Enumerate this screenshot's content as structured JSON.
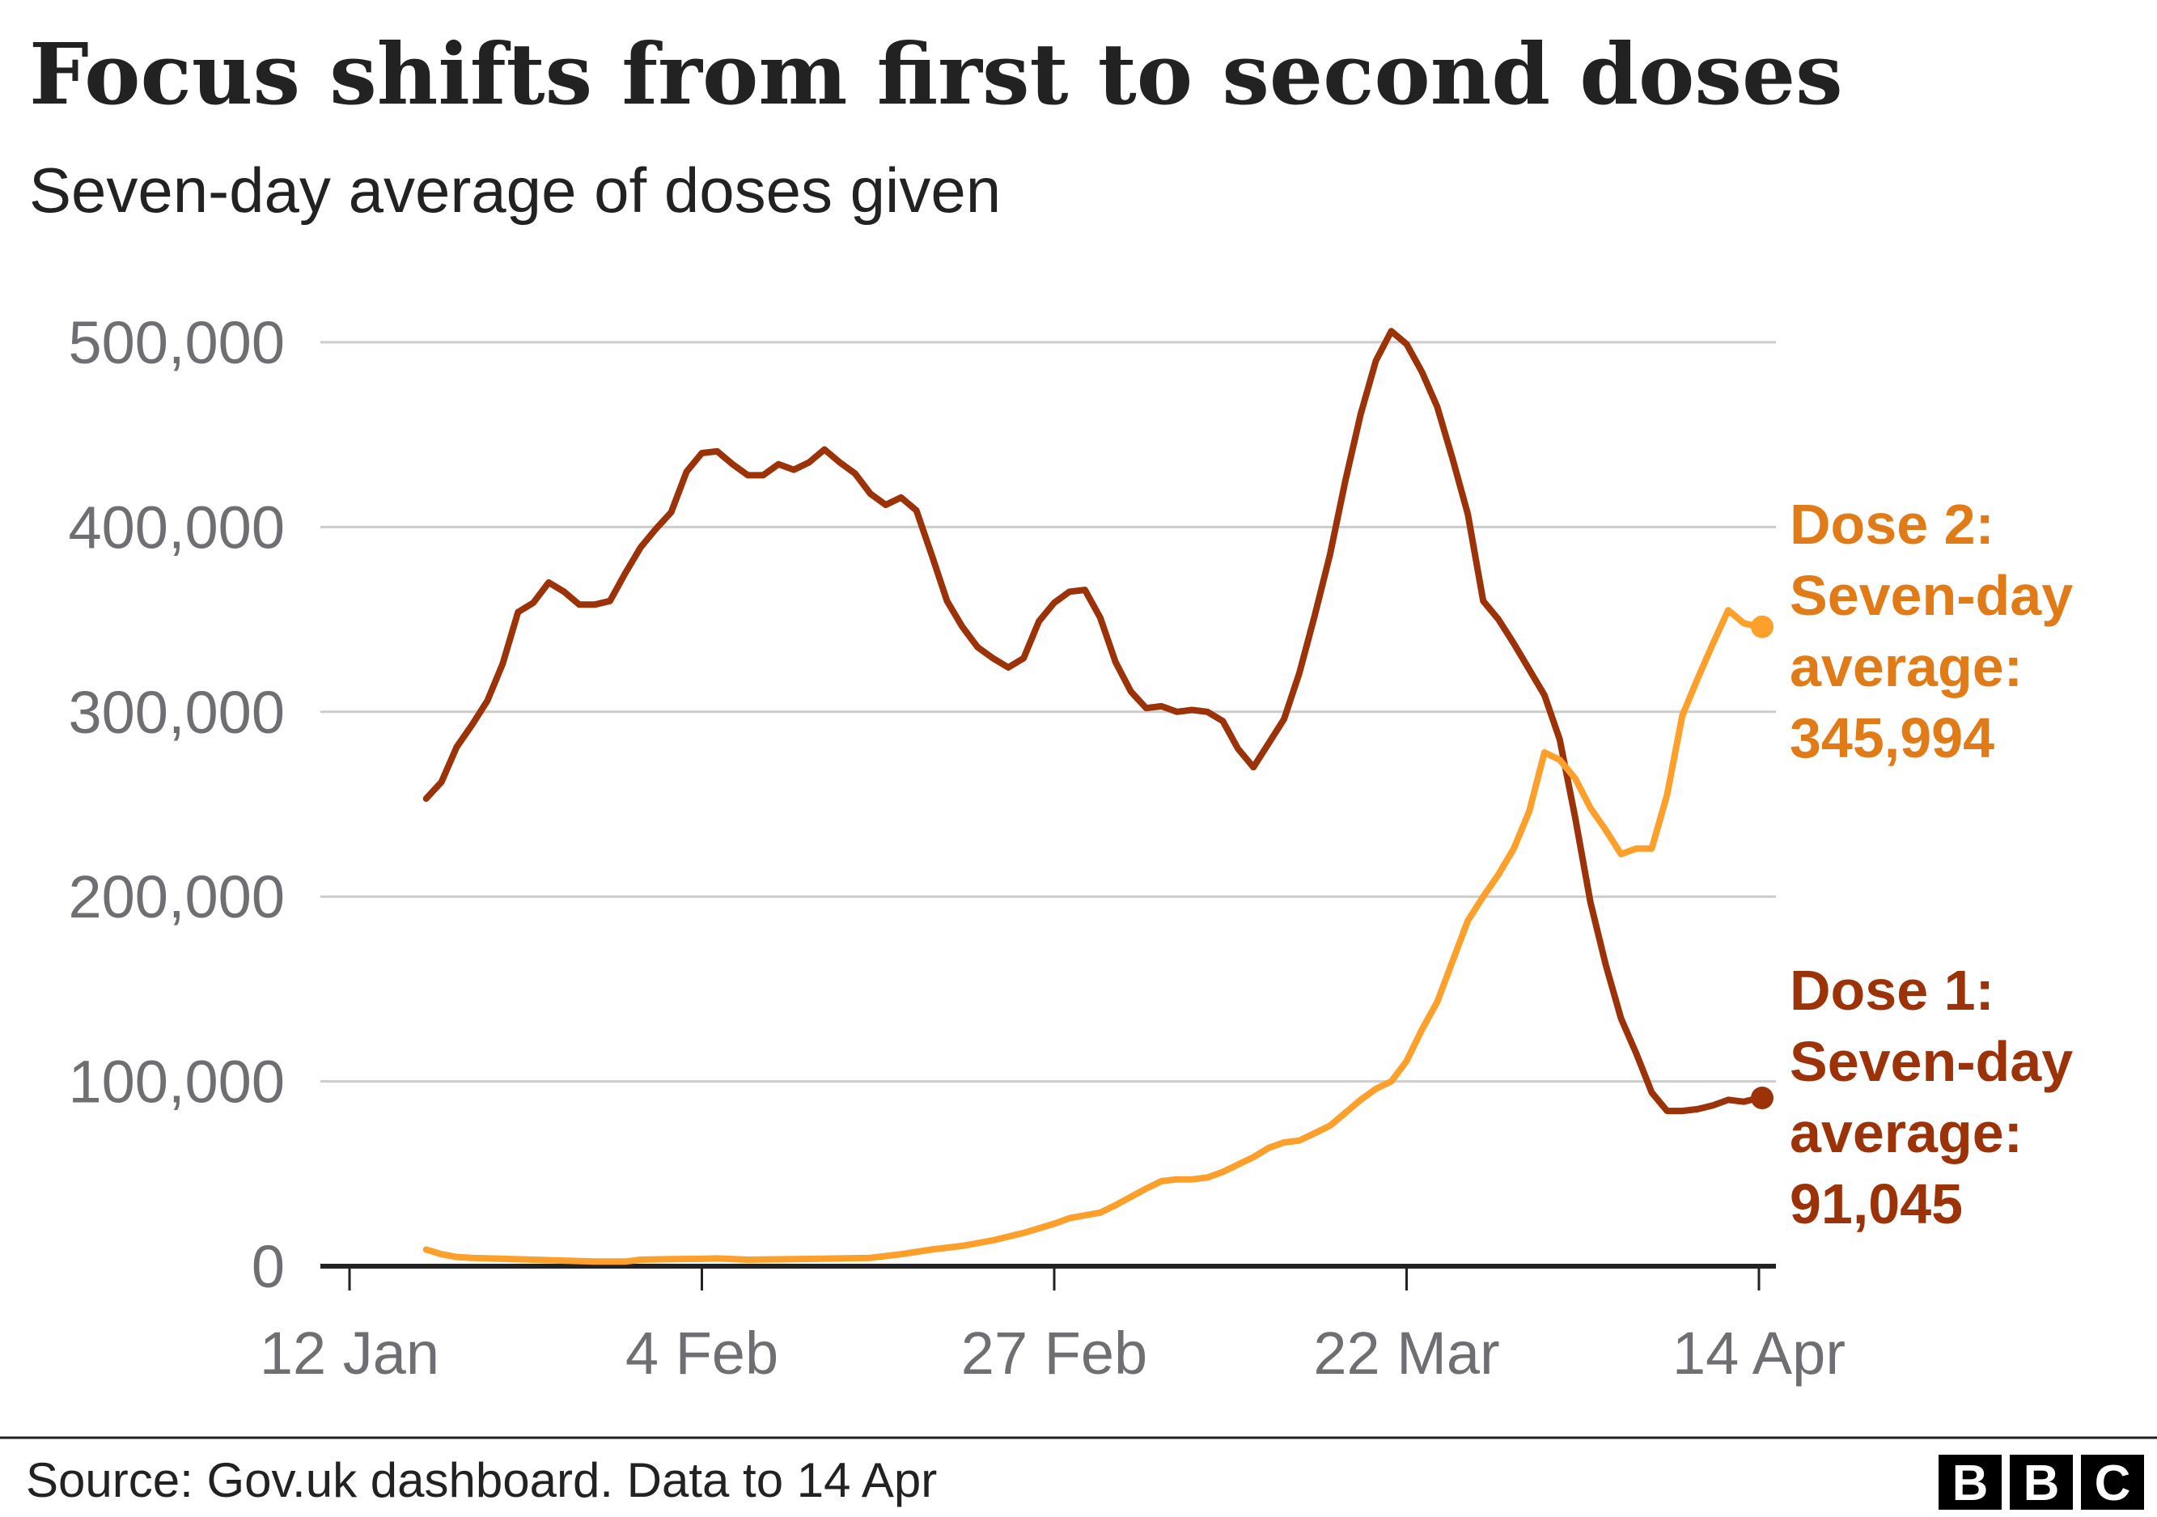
{
  "header": {
    "title": "Focus shifts from first to second doses",
    "subtitle": "Seven-day average of doses given"
  },
  "footer": {
    "source": "Source: Gov.uk dashboard. Data to 14 Apr",
    "logo_letters": [
      "B",
      "B",
      "C"
    ]
  },
  "colors": {
    "dose1": "#9c3208",
    "dose2": "#fd9f2b",
    "dose2_label": "#e07b17",
    "grid": "#cccccc",
    "axis": "#222222",
    "tick_label": "#6e6e73"
  },
  "chart_data": {
    "type": "line",
    "title": "Focus shifts from first to second doses",
    "subtitle": "Seven-day average of doses given",
    "xlabel": "",
    "ylabel": "",
    "ylim": [
      0,
      500000
    ],
    "yticks": [
      0,
      100000,
      200000,
      300000,
      400000,
      500000
    ],
    "ytick_labels": [
      "0",
      "100,000",
      "200,000",
      "300,000",
      "400,000",
      "500,000"
    ],
    "x_date_range": [
      "2021-01-12",
      "2021-04-14"
    ],
    "xticks": [
      "2021-01-12",
      "2021-02-04",
      "2021-02-27",
      "2021-03-22",
      "2021-04-14"
    ],
    "xtick_labels": [
      "12 Jan",
      "4 Feb",
      "27 Feb",
      "22 Mar",
      "14 Apr"
    ],
    "grid": true,
    "series": [
      {
        "name": "Dose 1",
        "color": "#9c3208",
        "end_label": [
          "Dose 1:",
          "Seven-day",
          "average:",
          "91,045"
        ],
        "points": [
          [
            "2021-01-17",
            253000
          ],
          [
            "2021-01-18",
            262000
          ],
          [
            "2021-01-19",
            281000
          ],
          [
            "2021-01-20",
            293000
          ],
          [
            "2021-01-21",
            306000
          ],
          [
            "2021-01-22",
            326000
          ],
          [
            "2021-01-23",
            354000
          ],
          [
            "2021-01-24",
            359000
          ],
          [
            "2021-01-25",
            370000
          ],
          [
            "2021-01-26",
            365000
          ],
          [
            "2021-01-27",
            358000
          ],
          [
            "2021-01-28",
            358000
          ],
          [
            "2021-01-29",
            360000
          ],
          [
            "2021-01-30",
            375000
          ],
          [
            "2021-01-31",
            389000
          ],
          [
            "2021-02-01",
            399000
          ],
          [
            "2021-02-02",
            408000
          ],
          [
            "2021-02-03",
            430000
          ],
          [
            "2021-02-04",
            440000
          ],
          [
            "2021-02-05",
            441000
          ],
          [
            "2021-02-06",
            434000
          ],
          [
            "2021-02-07",
            428000
          ],
          [
            "2021-02-08",
            428000
          ],
          [
            "2021-02-09",
            434000
          ],
          [
            "2021-02-10",
            431000
          ],
          [
            "2021-02-11",
            435000
          ],
          [
            "2021-02-12",
            442000
          ],
          [
            "2021-02-13",
            435000
          ],
          [
            "2021-02-14",
            429000
          ],
          [
            "2021-02-15",
            418000
          ],
          [
            "2021-02-16",
            412000
          ],
          [
            "2021-02-17",
            416000
          ],
          [
            "2021-02-18",
            409000
          ],
          [
            "2021-02-19",
            385000
          ],
          [
            "2021-02-20",
            360000
          ],
          [
            "2021-02-21",
            346000
          ],
          [
            "2021-02-22",
            335000
          ],
          [
            "2021-02-23",
            329000
          ],
          [
            "2021-02-24",
            324000
          ],
          [
            "2021-02-25",
            329000
          ],
          [
            "2021-02-26",
            349000
          ],
          [
            "2021-02-27",
            359000
          ],
          [
            "2021-02-28",
            365000
          ],
          [
            "2021-03-01",
            366000
          ],
          [
            "2021-03-02",
            351000
          ],
          [
            "2021-03-03",
            327000
          ],
          [
            "2021-03-04",
            311000
          ],
          [
            "2021-03-05",
            302000
          ],
          [
            "2021-03-06",
            303000
          ],
          [
            "2021-03-07",
            300000
          ],
          [
            "2021-03-08",
            301000
          ],
          [
            "2021-03-09",
            300000
          ],
          [
            "2021-03-10",
            295000
          ],
          [
            "2021-03-11",
            280000
          ],
          [
            "2021-03-12",
            270000
          ],
          [
            "2021-03-13",
            283000
          ],
          [
            "2021-03-14",
            296000
          ],
          [
            "2021-03-15",
            321000
          ],
          [
            "2021-03-16",
            352000
          ],
          [
            "2021-03-17",
            385000
          ],
          [
            "2021-03-18",
            425000
          ],
          [
            "2021-03-19",
            461000
          ],
          [
            "2021-03-20",
            490000
          ],
          [
            "2021-03-21",
            506000
          ],
          [
            "2021-03-22",
            499000
          ],
          [
            "2021-03-23",
            484000
          ],
          [
            "2021-03-24",
            465000
          ],
          [
            "2021-03-25",
            437000
          ],
          [
            "2021-03-26",
            407000
          ],
          [
            "2021-03-27",
            360000
          ],
          [
            "2021-03-28",
            350000
          ],
          [
            "2021-03-29",
            337000
          ],
          [
            "2021-03-30",
            323000
          ],
          [
            "2021-03-31",
            309000
          ],
          [
            "2021-04-01",
            285000
          ],
          [
            "2021-04-02",
            243000
          ],
          [
            "2021-04-03",
            197000
          ],
          [
            "2021-04-04",
            163000
          ],
          [
            "2021-04-05",
            134000
          ],
          [
            "2021-04-06",
            115000
          ],
          [
            "2021-04-07",
            94000
          ],
          [
            "2021-04-08",
            84000
          ],
          [
            "2021-04-09",
            84000
          ],
          [
            "2021-04-10",
            85000
          ],
          [
            "2021-04-11",
            87000
          ],
          [
            "2021-04-12",
            90000
          ],
          [
            "2021-04-13",
            89000
          ],
          [
            "2021-04-14",
            91045
          ]
        ]
      },
      {
        "name": "Dose 2",
        "color": "#fd9f2b",
        "end_label": [
          "Dose 2:",
          "Seven-day",
          "average:",
          "345,994"
        ],
        "points": [
          [
            "2021-01-17",
            9000
          ],
          [
            "2021-01-18",
            6500
          ],
          [
            "2021-01-19",
            5000
          ],
          [
            "2021-01-20",
            4500
          ],
          [
            "2021-01-22",
            4000
          ],
          [
            "2021-01-24",
            3500
          ],
          [
            "2021-01-26",
            3000
          ],
          [
            "2021-01-28",
            2500
          ],
          [
            "2021-01-30",
            2500
          ],
          [
            "2021-01-31",
            3500
          ],
          [
            "2021-02-02",
            3800
          ],
          [
            "2021-02-04",
            4000
          ],
          [
            "2021-02-05",
            4200
          ],
          [
            "2021-02-07",
            3500
          ],
          [
            "2021-02-10",
            3800
          ],
          [
            "2021-02-13",
            4200
          ],
          [
            "2021-02-15",
            4500
          ],
          [
            "2021-02-17",
            6500
          ],
          [
            "2021-02-19",
            9000
          ],
          [
            "2021-02-21",
            11000
          ],
          [
            "2021-02-23",
            14000
          ],
          [
            "2021-02-25",
            18000
          ],
          [
            "2021-02-27",
            23000
          ],
          [
            "2021-02-28",
            26000
          ],
          [
            "2021-03-02",
            29000
          ],
          [
            "2021-03-03",
            33000
          ],
          [
            "2021-03-05",
            42000
          ],
          [
            "2021-03-06",
            46000
          ],
          [
            "2021-03-07",
            47000
          ],
          [
            "2021-03-08",
            47000
          ],
          [
            "2021-03-09",
            48000
          ],
          [
            "2021-03-10",
            51000
          ],
          [
            "2021-03-11",
            55000
          ],
          [
            "2021-03-12",
            59000
          ],
          [
            "2021-03-13",
            64000
          ],
          [
            "2021-03-14",
            67000
          ],
          [
            "2021-03-15",
            68000
          ],
          [
            "2021-03-16",
            72000
          ],
          [
            "2021-03-17",
            76000
          ],
          [
            "2021-03-18",
            83000
          ],
          [
            "2021-03-19",
            90000
          ],
          [
            "2021-03-20",
            96000
          ],
          [
            "2021-03-21",
            100000
          ],
          [
            "2021-03-22",
            111000
          ],
          [
            "2021-03-23",
            128000
          ],
          [
            "2021-03-24",
            143000
          ],
          [
            "2021-03-25",
            165000
          ],
          [
            "2021-03-26",
            187000
          ],
          [
            "2021-03-27",
            200000
          ],
          [
            "2021-03-28",
            212000
          ],
          [
            "2021-03-29",
            226000
          ],
          [
            "2021-03-30",
            246000
          ],
          [
            "2021-03-31",
            278000
          ],
          [
            "2021-04-01",
            274000
          ],
          [
            "2021-04-02",
            264000
          ],
          [
            "2021-04-03",
            248000
          ],
          [
            "2021-04-04",
            236000
          ],
          [
            "2021-04-05",
            223000
          ],
          [
            "2021-04-06",
            226000
          ],
          [
            "2021-04-07",
            226000
          ],
          [
            "2021-04-08",
            255000
          ],
          [
            "2021-04-09",
            298000
          ],
          [
            "2021-04-10",
            318000
          ],
          [
            "2021-04-11",
            337000
          ],
          [
            "2021-04-12",
            355000
          ],
          [
            "2021-04-13",
            348000
          ],
          [
            "2021-04-14",
            345994
          ]
        ]
      }
    ]
  }
}
